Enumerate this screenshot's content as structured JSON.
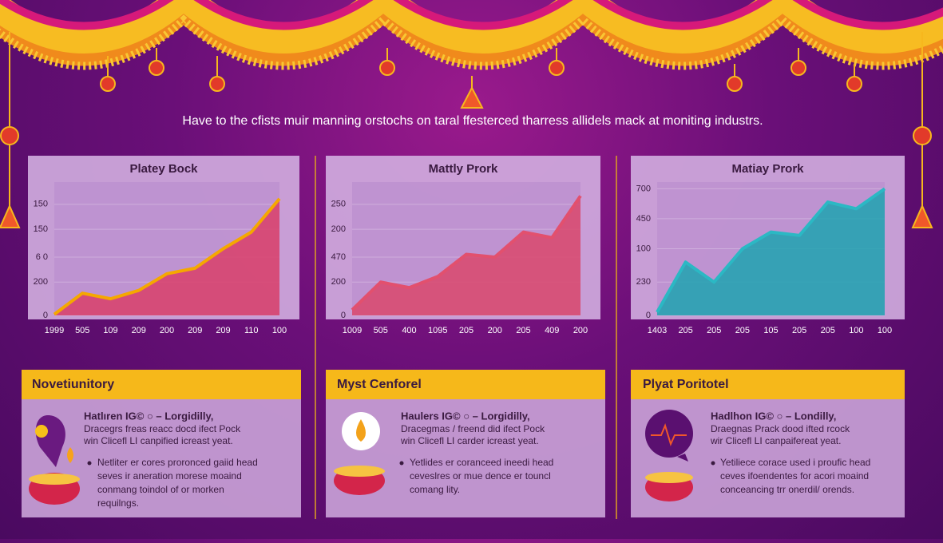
{
  "header": {
    "subtitle": "Have to the cfists muir manning orstochs on taral ffesterced tharress allidels mack at moniting industrs."
  },
  "chart_data": [
    {
      "type": "area",
      "title": "Platey Bock",
      "categories": [
        "1999",
        "505",
        "109",
        "209",
        "200",
        "209",
        "209",
        "110",
        "100"
      ],
      "ylim": [
        0,
        240
      ],
      "yticks": [
        0,
        {
          "value": 60,
          "label": "200"
        },
        {
          "value": 105,
          "label": "6 0"
        },
        {
          "value": 155,
          "label": "150"
        },
        {
          "value": 200,
          "label": "150"
        }
      ],
      "series": [
        {
          "color": "#d9406a",
          "line_color": "#f5a800",
          "values": [
            2,
            40,
            30,
            45,
            75,
            85,
            120,
            150,
            210
          ]
        }
      ]
    },
    {
      "type": "area",
      "title": "Mattly Prork",
      "categories": [
        "1009",
        "505",
        "400",
        "1095",
        "205",
        "200",
        "205",
        "409",
        "200"
      ],
      "ylim": [
        0,
        240
      ],
      "yticks": [
        0,
        {
          "value": 60,
          "label": "200"
        },
        {
          "value": 105,
          "label": "470"
        },
        {
          "value": 155,
          "label": "200"
        },
        {
          "value": 200,
          "label": "250"
        }
      ],
      "series": [
        {
          "color": "#d9486c",
          "line_color": "#e2506e",
          "values": [
            10,
            60,
            50,
            70,
            110,
            105,
            150,
            140,
            215
          ]
        }
      ]
    },
    {
      "type": "area",
      "title": "Matiay Prork",
      "categories": [
        "1403",
        "205",
        "205",
        "205",
        "105",
        "205",
        "205",
        "100",
        "100"
      ],
      "ylim": [
        0,
        200
      ],
      "yticks": [
        0,
        {
          "value": 50,
          "label": "230"
        },
        {
          "value": 100,
          "label": "100"
        },
        {
          "value": 145,
          "label": "450"
        },
        {
          "value": 190,
          "label": "700"
        }
      ],
      "series": [
        {
          "color": "#1fa3b0",
          "line_color": "#2bb8c4",
          "values": [
            5,
            80,
            50,
            100,
            125,
            120,
            170,
            160,
            190
          ]
        }
      ]
    }
  ],
  "cards": [
    {
      "title": "Novetiunitory",
      "heading": "Hatlıren IG© ○ – Lorgidilly,",
      "lines": [
        "Dracegrs freas reacc docd ifect Pock",
        "win Clicefl LI canpified icreast yeat."
      ],
      "bullet": [
        "Netliter er cores proronced gaiid head",
        "seves ir aneration morese moaind",
        "conmang toindol of or morken",
        "requilngs."
      ]
    },
    {
      "title": "Myst Cenforel",
      "heading": "Haulers IG© ○ – Lorgidilly,",
      "lines": [
        "Dracegmas / freend did ifect Pock",
        "win Clicefl LI carder icreast yeat."
      ],
      "bullet": [
        "Yetlides er coranceed ineedi head",
        "ceveslres or mue dence er touncl",
        "comang lity."
      ]
    },
    {
      "title": "Plyat Poritotel",
      "heading": "Hadlhon IG© ○ – Londilly,",
      "lines": [
        "Draegnas Prack dood ifted rcock",
        "wir Clicefl LI canpaifereat yeat."
      ],
      "bullet": [
        "Yetiliece corace used i proufic head",
        "ceves ifoendentes for acori moaind",
        "conceancing trr onerdil/ orends."
      ]
    }
  ]
}
